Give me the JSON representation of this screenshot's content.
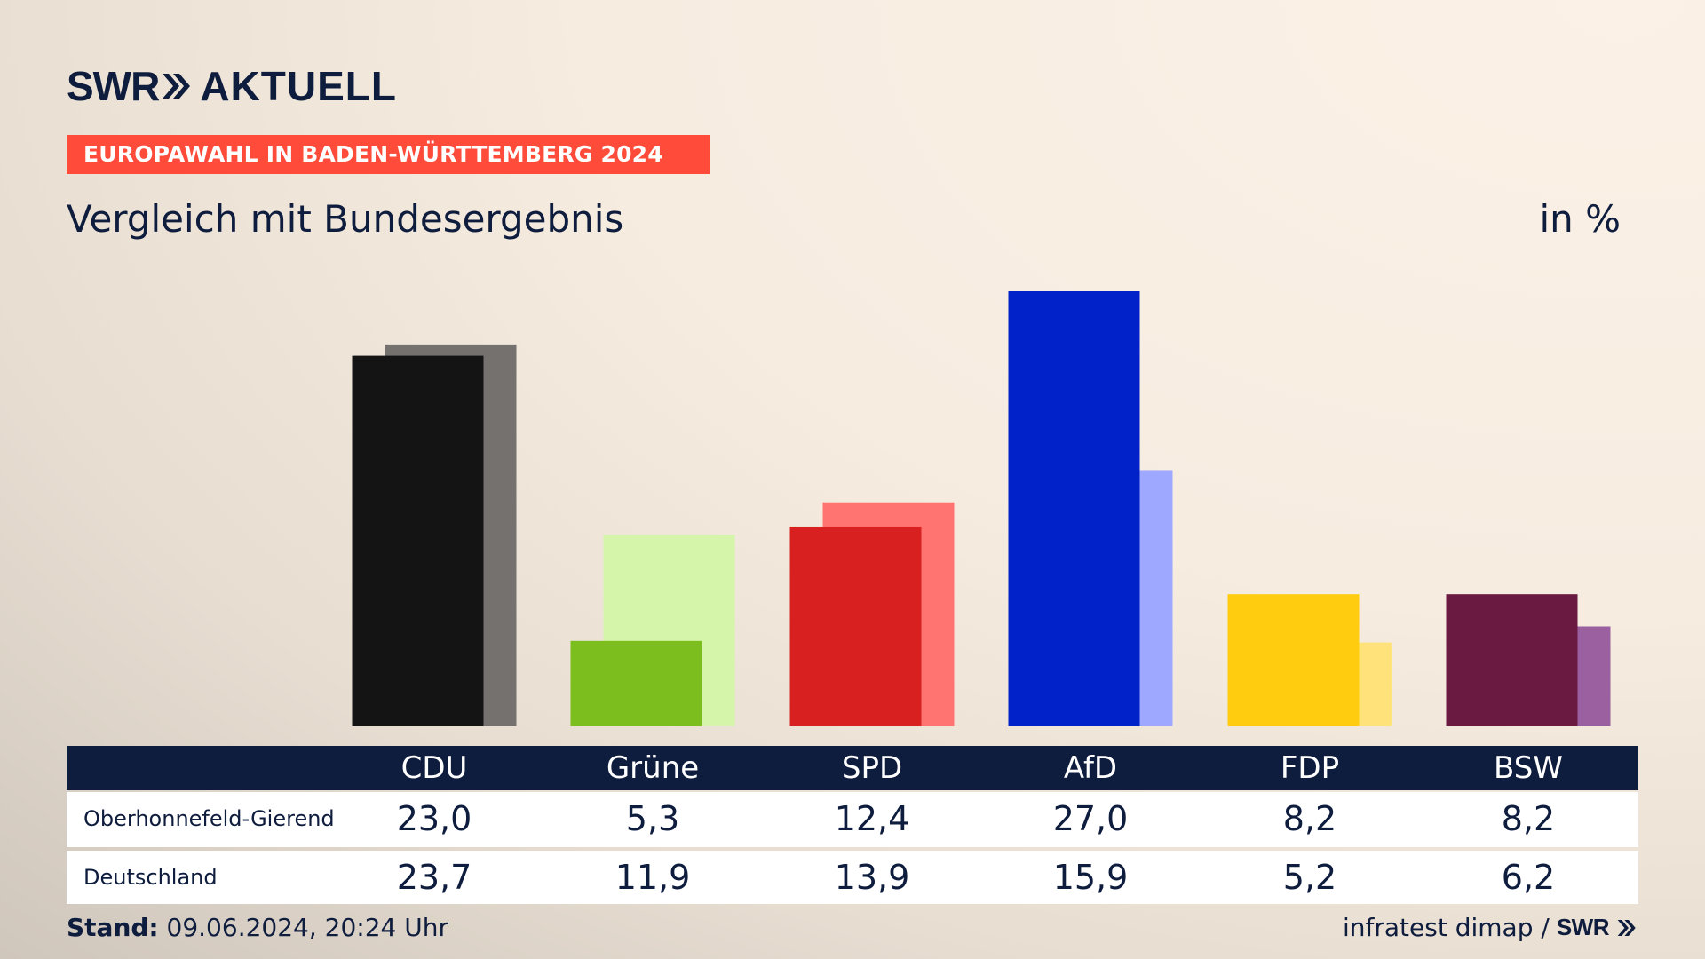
{
  "brand": {
    "swr": "SWR",
    "aktuell": "AKTUELL"
  },
  "banner": "EUROPAWAHL IN BADEN-WÜRTTEMBERG 2024",
  "subtitle": "Vergleich mit Bundesergebnis",
  "unit": "in %",
  "chart_data": {
    "type": "bar",
    "title": "Vergleich mit Bundesergebnis",
    "unit": "in %",
    "categories": [
      "CDU",
      "Grüne",
      "SPD",
      "AfD",
      "FDP",
      "BSW"
    ],
    "series": [
      {
        "name": "Oberhonnefeld-Gierend",
        "values": [
          23.0,
          5.3,
          12.4,
          27.0,
          8.2,
          8.2
        ],
        "labels": [
          "23,0",
          "5,3",
          "12,4",
          "27,0",
          "8,2",
          "8,2"
        ]
      },
      {
        "name": "Deutschland",
        "values": [
          23.7,
          11.9,
          13.9,
          15.9,
          5.2,
          6.2
        ],
        "labels": [
          "23,7",
          "11,9",
          "13,9",
          "15,9",
          "5,2",
          "6,2"
        ]
      }
    ],
    "colors_local": [
      "#141414",
      "#7bbe1e",
      "#d7201f",
      "#0022c8",
      "#ffcc0f",
      "#6a1a41"
    ],
    "colors_federal": [
      "#74716f",
      "#d5f5aa",
      "#ff7371",
      "#9fa8ff",
      "#ffe27a",
      "#9b60a0"
    ],
    "ylim": [
      0,
      27
    ]
  },
  "footer": {
    "stand_label": "Stand:",
    "stand_value": "09.06.2024, 20:24 Uhr",
    "source": "infratest dimap /",
    "swr": "SWR"
  }
}
